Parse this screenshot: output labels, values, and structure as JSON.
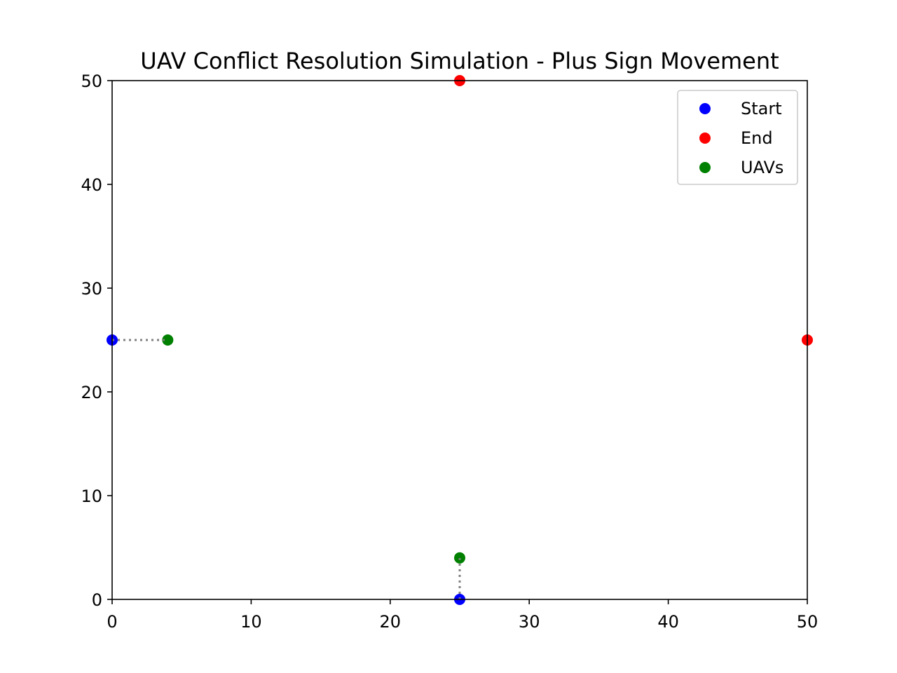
{
  "chart_data": {
    "type": "scatter",
    "title": "UAV Conflict Resolution Simulation - Plus Sign Movement",
    "xlabel": "",
    "ylabel": "",
    "xlim": [
      0,
      50
    ],
    "ylim": [
      0,
      50
    ],
    "x_ticks": [
      0,
      10,
      20,
      30,
      40,
      50
    ],
    "y_ticks": [
      0,
      10,
      20,
      30,
      40,
      50
    ],
    "grid": false,
    "legend_position": "top-right",
    "series": [
      {
        "name": "Start",
        "color": "#0000ff",
        "points": [
          {
            "x": 0,
            "y": 25
          },
          {
            "x": 25,
            "y": 0
          }
        ]
      },
      {
        "name": "End",
        "color": "#ff0000",
        "points": [
          {
            "x": 25,
            "y": 50
          },
          {
            "x": 50,
            "y": 25
          }
        ]
      },
      {
        "name": "UAVs",
        "color": "#008000",
        "points": [
          {
            "x": 4,
            "y": 25
          },
          {
            "x": 25,
            "y": 4
          }
        ]
      }
    ],
    "paths": [
      {
        "color": "#808080",
        "style": "dotted",
        "points": [
          {
            "x": 0,
            "y": 25
          },
          {
            "x": 4,
            "y": 25
          }
        ]
      },
      {
        "color": "#808080",
        "style": "dotted",
        "points": [
          {
            "x": 25,
            "y": 0
          },
          {
            "x": 25,
            "y": 4
          }
        ]
      }
    ]
  }
}
